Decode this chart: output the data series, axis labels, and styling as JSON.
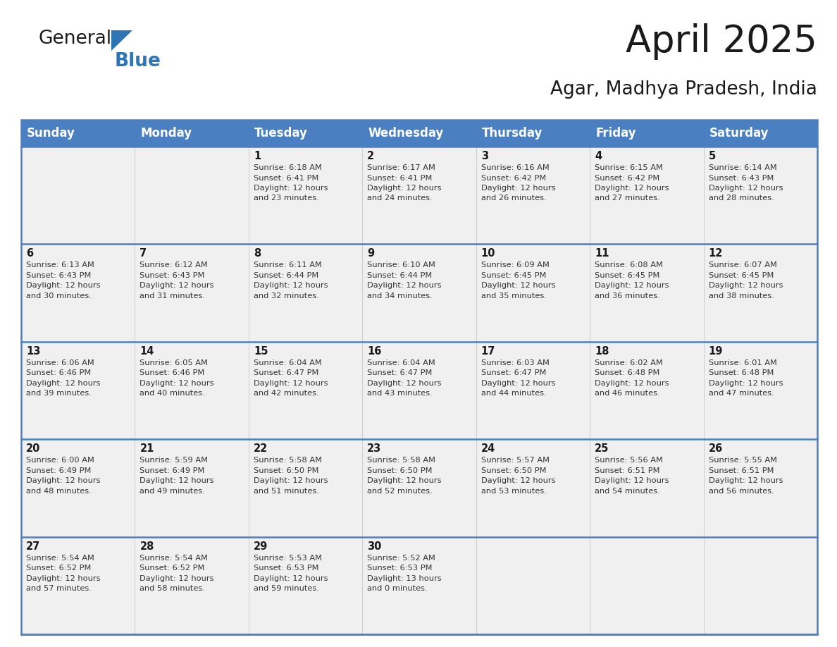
{
  "title": "April 2025",
  "subtitle": "Agar, Madhya Pradesh, India",
  "header_bg_color": "#4A7FC1",
  "header_text_color": "#FFFFFF",
  "cell_bg_color": "#F0F0F0",
  "border_color": "#4A7FC1",
  "grid_line_color": "#CCCCCC",
  "day_headers": [
    "Sunday",
    "Monday",
    "Tuesday",
    "Wednesday",
    "Thursday",
    "Friday",
    "Saturday"
  ],
  "weeks": [
    [
      {
        "day": "",
        "info": ""
      },
      {
        "day": "",
        "info": ""
      },
      {
        "day": "1",
        "info": "Sunrise: 6:18 AM\nSunset: 6:41 PM\nDaylight: 12 hours\nand 23 minutes."
      },
      {
        "day": "2",
        "info": "Sunrise: 6:17 AM\nSunset: 6:41 PM\nDaylight: 12 hours\nand 24 minutes."
      },
      {
        "day": "3",
        "info": "Sunrise: 6:16 AM\nSunset: 6:42 PM\nDaylight: 12 hours\nand 26 minutes."
      },
      {
        "day": "4",
        "info": "Sunrise: 6:15 AM\nSunset: 6:42 PM\nDaylight: 12 hours\nand 27 minutes."
      },
      {
        "day": "5",
        "info": "Sunrise: 6:14 AM\nSunset: 6:43 PM\nDaylight: 12 hours\nand 28 minutes."
      }
    ],
    [
      {
        "day": "6",
        "info": "Sunrise: 6:13 AM\nSunset: 6:43 PM\nDaylight: 12 hours\nand 30 minutes."
      },
      {
        "day": "7",
        "info": "Sunrise: 6:12 AM\nSunset: 6:43 PM\nDaylight: 12 hours\nand 31 minutes."
      },
      {
        "day": "8",
        "info": "Sunrise: 6:11 AM\nSunset: 6:44 PM\nDaylight: 12 hours\nand 32 minutes."
      },
      {
        "day": "9",
        "info": "Sunrise: 6:10 AM\nSunset: 6:44 PM\nDaylight: 12 hours\nand 34 minutes."
      },
      {
        "day": "10",
        "info": "Sunrise: 6:09 AM\nSunset: 6:45 PM\nDaylight: 12 hours\nand 35 minutes."
      },
      {
        "day": "11",
        "info": "Sunrise: 6:08 AM\nSunset: 6:45 PM\nDaylight: 12 hours\nand 36 minutes."
      },
      {
        "day": "12",
        "info": "Sunrise: 6:07 AM\nSunset: 6:45 PM\nDaylight: 12 hours\nand 38 minutes."
      }
    ],
    [
      {
        "day": "13",
        "info": "Sunrise: 6:06 AM\nSunset: 6:46 PM\nDaylight: 12 hours\nand 39 minutes."
      },
      {
        "day": "14",
        "info": "Sunrise: 6:05 AM\nSunset: 6:46 PM\nDaylight: 12 hours\nand 40 minutes."
      },
      {
        "day": "15",
        "info": "Sunrise: 6:04 AM\nSunset: 6:47 PM\nDaylight: 12 hours\nand 42 minutes."
      },
      {
        "day": "16",
        "info": "Sunrise: 6:04 AM\nSunset: 6:47 PM\nDaylight: 12 hours\nand 43 minutes."
      },
      {
        "day": "17",
        "info": "Sunrise: 6:03 AM\nSunset: 6:47 PM\nDaylight: 12 hours\nand 44 minutes."
      },
      {
        "day": "18",
        "info": "Sunrise: 6:02 AM\nSunset: 6:48 PM\nDaylight: 12 hours\nand 46 minutes."
      },
      {
        "day": "19",
        "info": "Sunrise: 6:01 AM\nSunset: 6:48 PM\nDaylight: 12 hours\nand 47 minutes."
      }
    ],
    [
      {
        "day": "20",
        "info": "Sunrise: 6:00 AM\nSunset: 6:49 PM\nDaylight: 12 hours\nand 48 minutes."
      },
      {
        "day": "21",
        "info": "Sunrise: 5:59 AM\nSunset: 6:49 PM\nDaylight: 12 hours\nand 49 minutes."
      },
      {
        "day": "22",
        "info": "Sunrise: 5:58 AM\nSunset: 6:50 PM\nDaylight: 12 hours\nand 51 minutes."
      },
      {
        "day": "23",
        "info": "Sunrise: 5:58 AM\nSunset: 6:50 PM\nDaylight: 12 hours\nand 52 minutes."
      },
      {
        "day": "24",
        "info": "Sunrise: 5:57 AM\nSunset: 6:50 PM\nDaylight: 12 hours\nand 53 minutes."
      },
      {
        "day": "25",
        "info": "Sunrise: 5:56 AM\nSunset: 6:51 PM\nDaylight: 12 hours\nand 54 minutes."
      },
      {
        "day": "26",
        "info": "Sunrise: 5:55 AM\nSunset: 6:51 PM\nDaylight: 12 hours\nand 56 minutes."
      }
    ],
    [
      {
        "day": "27",
        "info": "Sunrise: 5:54 AM\nSunset: 6:52 PM\nDaylight: 12 hours\nand 57 minutes."
      },
      {
        "day": "28",
        "info": "Sunrise: 5:54 AM\nSunset: 6:52 PM\nDaylight: 12 hours\nand 58 minutes."
      },
      {
        "day": "29",
        "info": "Sunrise: 5:53 AM\nSunset: 6:53 PM\nDaylight: 12 hours\nand 59 minutes."
      },
      {
        "day": "30",
        "info": "Sunrise: 5:52 AM\nSunset: 6:53 PM\nDaylight: 13 hours\nand 0 minutes."
      },
      {
        "day": "",
        "info": ""
      },
      {
        "day": "",
        "info": ""
      },
      {
        "day": "",
        "info": ""
      }
    ]
  ],
  "logo_general_color": "#1a1a1a",
  "logo_blue_color": "#2E75B6",
  "title_fontsize": 38,
  "subtitle_fontsize": 19,
  "header_fontsize": 12,
  "day_num_fontsize": 10.5,
  "info_fontsize": 8.2
}
